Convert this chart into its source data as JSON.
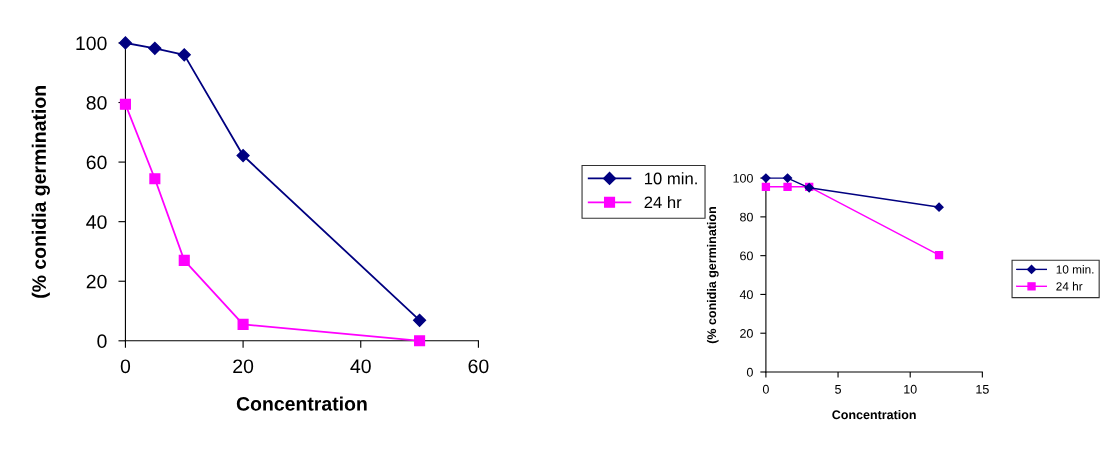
{
  "chart_data": [
    {
      "type": "line",
      "xlabel": "Concentration",
      "ylabel": "(% conidia germination",
      "xlim": [
        0,
        60
      ],
      "xticks": [
        0,
        20,
        40,
        60
      ],
      "ylim": [
        0,
        100
      ],
      "yticks": [
        0,
        20,
        40,
        60,
        80,
        100
      ],
      "legend": "right",
      "grid": false,
      "series": [
        {
          "name": "10 min.",
          "color": "#000080",
          "marker": "diamond",
          "x": [
            0,
            5,
            10,
            20,
            50
          ],
          "values": [
            100,
            98.2,
            96,
            62.2,
            6.9
          ]
        },
        {
          "name": "24 hr",
          "color": "#ff00ff",
          "marker": "square",
          "x": [
            0,
            5,
            10,
            20,
            50
          ],
          "values": [
            79.4,
            54.4,
            27,
            5.5,
            0
          ]
        }
      ]
    },
    {
      "type": "line",
      "xlabel": "Concentration",
      "ylabel": "(% conidia germination",
      "xlim": [
        0,
        15
      ],
      "xticks": [
        0,
        5,
        10,
        15
      ],
      "ylim": [
        0,
        100
      ],
      "yticks": [
        0,
        20,
        40,
        60,
        80,
        100
      ],
      "legend": "right",
      "grid": false,
      "series": [
        {
          "name": "10 min.",
          "color": "#000080",
          "marker": "diamond",
          "x": [
            0,
            1.5,
            3,
            12
          ],
          "values": [
            100,
            100,
            95,
            85
          ]
        },
        {
          "name": "24 hr",
          "color": "#ff00ff",
          "marker": "square",
          "x": [
            0,
            1.5,
            3,
            12
          ],
          "values": [
            95.5,
            95.5,
            95.5,
            60.3
          ]
        }
      ]
    }
  ]
}
